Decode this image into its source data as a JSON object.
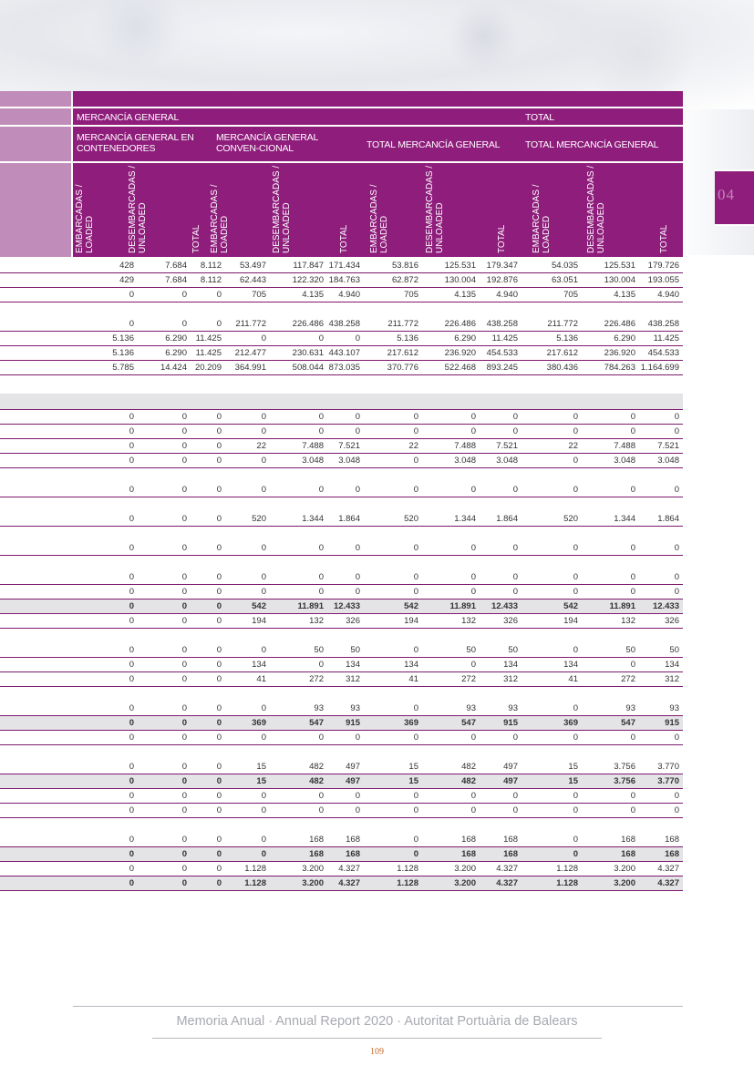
{
  "chapter": "04",
  "header": {
    "group_general": "MERCANCÍA GENERAL",
    "group_total": "TOTAL",
    "col_containers": "MERCANCÍA GENERAL EN CONTENEDORES",
    "col_conventional": "MERCANCÍA GENERAL CONVEN-CIONAL",
    "col_total_general_1": "TOTAL MERCANCÍA GENERAL",
    "col_total_general_2": "TOTAL MERCANCÍA GENERAL",
    "sub_loaded": "EMBARCADAS / LOADED",
    "sub_unloaded": "DESEMBARCADAS / UNLOADED",
    "sub_total": "TOTAL"
  },
  "rows": [
    {
      "h": 16,
      "type": "normal",
      "v": [
        "428",
        "7.684",
        "8.112",
        "53.497",
        "117.847",
        "171.434",
        "53.816",
        "125.531",
        "179.347",
        "54.035",
        "125.531",
        "179.726"
      ]
    },
    {
      "h": 16,
      "type": "normal",
      "v": [
        "429",
        "7.684",
        "8.112",
        "62.443",
        "122.320",
        "184.763",
        "62.872",
        "130.004",
        "192.876",
        "63.051",
        "130.004",
        "193.055"
      ]
    },
    {
      "h": 16,
      "type": "normal",
      "v": [
        "0",
        "0",
        "0",
        "705",
        "4.135",
        "4.940",
        "705",
        "4.135",
        "4.940",
        "705",
        "4.135",
        "4.940"
      ]
    },
    {
      "h": 32,
      "type": "normal",
      "v": [
        "0",
        "0",
        "0",
        "211.772",
        "226.486",
        "438.258",
        "211.772",
        "226.486",
        "438.258",
        "211.772",
        "226.486",
        "438.258"
      ]
    },
    {
      "h": 16,
      "type": "normal",
      "v": [
        "5.136",
        "6.290",
        "11.425",
        "0",
        "0",
        "0",
        "5.136",
        "6.290",
        "11.425",
        "5.136",
        "6.290",
        "11.425"
      ]
    },
    {
      "h": 16,
      "type": "normal",
      "v": [
        "5.136",
        "6.290",
        "11.425",
        "212.477",
        "230.631",
        "443.107",
        "217.612",
        "236.920",
        "454.533",
        "217.612",
        "236.920",
        "454.533"
      ]
    },
    {
      "h": 16,
      "type": "normal",
      "v": [
        "5.785",
        "14.424",
        "20.209",
        "364.991",
        "508.044",
        "873.035",
        "370.776",
        "522.468",
        "893.245",
        "380.436",
        "784.263",
        "1.164.699"
      ]
    },
    {
      "h": 20,
      "type": "blank",
      "v": []
    },
    {
      "h": 18,
      "type": "sep",
      "v": []
    },
    {
      "h": 16,
      "type": "normal",
      "v": [
        "0",
        "0",
        "0",
        "0",
        "0",
        "0",
        "0",
        "0",
        "0",
        "0",
        "0",
        "0"
      ]
    },
    {
      "h": 16,
      "type": "normal",
      "v": [
        "0",
        "0",
        "0",
        "0",
        "0",
        "0",
        "0",
        "0",
        "0",
        "0",
        "0",
        "0"
      ]
    },
    {
      "h": 16,
      "type": "normal",
      "v": [
        "0",
        "0",
        "0",
        "22",
        "7.488",
        "7.521",
        "22",
        "7.488",
        "7.521",
        "22",
        "7.488",
        "7.521"
      ]
    },
    {
      "h": 16,
      "type": "normal",
      "v": [
        "0",
        "0",
        "0",
        "0",
        "3.048",
        "3.048",
        "0",
        "3.048",
        "3.048",
        "0",
        "3.048",
        "3.048"
      ]
    },
    {
      "h": 32,
      "type": "normal",
      "v": [
        "0",
        "0",
        "0",
        "0",
        "0",
        "0",
        "0",
        "0",
        "0",
        "0",
        "0",
        "0"
      ]
    },
    {
      "h": 32,
      "type": "normal",
      "v": [
        "0",
        "0",
        "0",
        "520",
        "1.344",
        "1.864",
        "520",
        "1.344",
        "1.864",
        "520",
        "1.344",
        "1.864"
      ]
    },
    {
      "h": 32,
      "type": "normal",
      "v": [
        "0",
        "0",
        "0",
        "0",
        "0",
        "0",
        "0",
        "0",
        "0",
        "0",
        "0",
        "0"
      ]
    },
    {
      "h": 32,
      "type": "normal",
      "v": [
        "0",
        "0",
        "0",
        "0",
        "0",
        "0",
        "0",
        "0",
        "0",
        "0",
        "0",
        "0"
      ]
    },
    {
      "h": 16,
      "type": "normal",
      "v": [
        "0",
        "0",
        "0",
        "0",
        "0",
        "0",
        "0",
        "0",
        "0",
        "0",
        "0",
        "0"
      ]
    },
    {
      "h": 16,
      "type": "greybold",
      "v": [
        "0",
        "0",
        "0",
        "542",
        "11.891",
        "12.433",
        "542",
        "11.891",
        "12.433",
        "542",
        "11.891",
        "12.433"
      ]
    },
    {
      "h": 16,
      "type": "normal",
      "v": [
        "0",
        "0",
        "0",
        "194",
        "132",
        "326",
        "194",
        "132",
        "326",
        "194",
        "132",
        "326"
      ]
    },
    {
      "h": 32,
      "type": "normal",
      "v": [
        "0",
        "0",
        "0",
        "0",
        "50",
        "50",
        "0",
        "50",
        "50",
        "0",
        "50",
        "50"
      ]
    },
    {
      "h": 16,
      "type": "normal",
      "v": [
        "0",
        "0",
        "0",
        "134",
        "0",
        "134",
        "134",
        "0",
        "134",
        "134",
        "0",
        "134"
      ]
    },
    {
      "h": 16,
      "type": "normal",
      "v": [
        "0",
        "0",
        "0",
        "41",
        "272",
        "312",
        "41",
        "272",
        "312",
        "41",
        "272",
        "312"
      ]
    },
    {
      "h": 32,
      "type": "normal",
      "v": [
        "0",
        "0",
        "0",
        "0",
        "93",
        "93",
        "0",
        "93",
        "93",
        "0",
        "93",
        "93"
      ]
    },
    {
      "h": 16,
      "type": "greybold",
      "v": [
        "0",
        "0",
        "0",
        "369",
        "547",
        "915",
        "369",
        "547",
        "915",
        "369",
        "547",
        "915"
      ]
    },
    {
      "h": 16,
      "type": "normal",
      "v": [
        "0",
        "0",
        "0",
        "0",
        "0",
        "0",
        "0",
        "0",
        "0",
        "0",
        "0",
        "0"
      ]
    },
    {
      "h": 32,
      "type": "normal",
      "v": [
        "0",
        "0",
        "0",
        "15",
        "482",
        "497",
        "15",
        "482",
        "497",
        "15",
        "3.756",
        "3.770"
      ]
    },
    {
      "h": 16,
      "type": "greybold",
      "v": [
        "0",
        "0",
        "0",
        "15",
        "482",
        "497",
        "15",
        "482",
        "497",
        "15",
        "3.756",
        "3.770"
      ]
    },
    {
      "h": 16,
      "type": "normal",
      "v": [
        "0",
        "0",
        "0",
        "0",
        "0",
        "0",
        "0",
        "0",
        "0",
        "0",
        "0",
        "0"
      ]
    },
    {
      "h": 16,
      "type": "normal",
      "v": [
        "0",
        "0",
        "0",
        "0",
        "0",
        "0",
        "0",
        "0",
        "0",
        "0",
        "0",
        "0"
      ]
    },
    {
      "h": 32,
      "type": "normal",
      "v": [
        "0",
        "0",
        "0",
        "0",
        "168",
        "168",
        "0",
        "168",
        "168",
        "0",
        "168",
        "168"
      ]
    },
    {
      "h": 16,
      "type": "greybold",
      "v": [
        "0",
        "0",
        "0",
        "0",
        "168",
        "168",
        "0",
        "168",
        "168",
        "0",
        "168",
        "168"
      ]
    },
    {
      "h": 16,
      "type": "normal",
      "v": [
        "0",
        "0",
        "0",
        "1.128",
        "3.200",
        "4.327",
        "1.128",
        "3.200",
        "4.327",
        "1.128",
        "3.200",
        "4.327"
      ]
    },
    {
      "h": 16,
      "type": "greybold",
      "v": [
        "0",
        "0",
        "0",
        "1.128",
        "3.200",
        "4.327",
        "1.128",
        "3.200",
        "4.327",
        "1.128",
        "3.200",
        "4.327"
      ]
    }
  ],
  "footer": {
    "title": "Memoria Anual · Annual Report 2020 · Autoritat Portuària de Balears",
    "page": "109"
  }
}
